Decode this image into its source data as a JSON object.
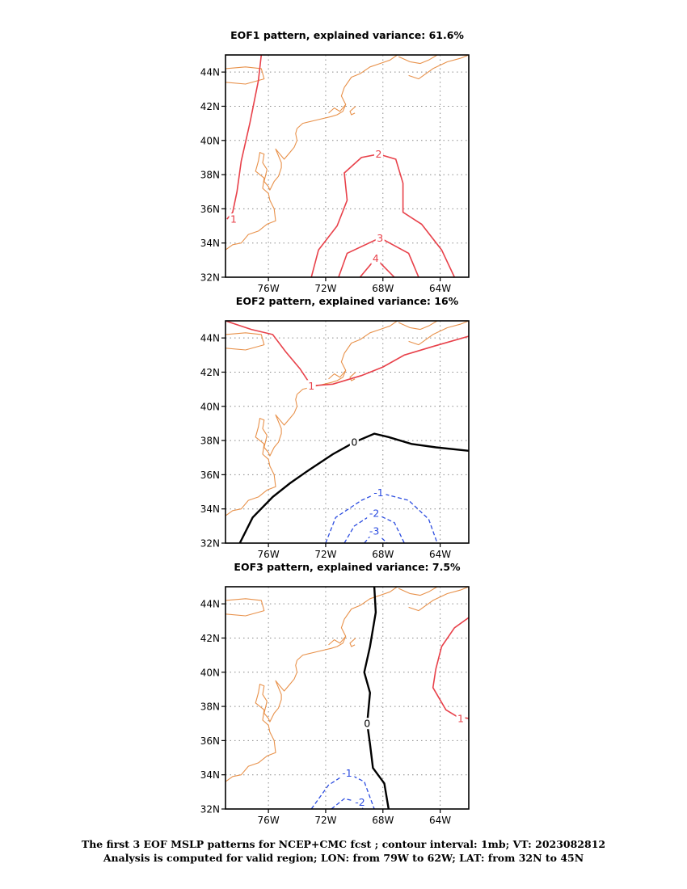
{
  "chart_data": [
    {
      "type": "contour",
      "title": "EOF1 pattern, explained variance: 61.6%",
      "x_ticks": [
        "76W",
        "72W",
        "68W",
        "64W"
      ],
      "y_ticks": [
        "32N",
        "34N",
        "36N",
        "38N",
        "40N",
        "42N",
        "44N"
      ],
      "lon_range": [
        -79,
        -62
      ],
      "lat_range": [
        32,
        45
      ],
      "grid": true,
      "contours": [
        {
          "value": 1,
          "label": "1",
          "color": "#e8414a",
          "line": [
            [
              -76.5,
              45
            ],
            [
              -76.7,
              43.5
            ],
            [
              -77.3,
              41
            ],
            [
              -77.9,
              38.8
            ],
            [
              -78.2,
              37
            ],
            [
              -78.5,
              35.8
            ],
            [
              -78.9,
              35.4
            ]
          ]
        },
        {
          "value": 2,
          "label": "2",
          "color": "#e8414a",
          "line": [
            [
              -73,
              32
            ],
            [
              -72.5,
              33.6
            ],
            [
              -71.2,
              35
            ],
            [
              -70.5,
              36.5
            ],
            [
              -70.7,
              38.1
            ],
            [
              -69.5,
              39
            ],
            [
              -68.3,
              39.2
            ],
            [
              -67.1,
              38.9
            ],
            [
              -66.6,
              37.5
            ],
            [
              -66.6,
              35.8
            ],
            [
              -65.3,
              35.1
            ],
            [
              -63.9,
              33.6
            ],
            [
              -63,
              32
            ]
          ]
        },
        {
          "value": 3,
          "label": "3",
          "color": "#e8414a",
          "line": [
            [
              -71.1,
              32
            ],
            [
              -70.5,
              33.4
            ],
            [
              -68.2,
              34.3
            ],
            [
              -66.2,
              33.4
            ],
            [
              -65.5,
              32
            ]
          ]
        },
        {
          "value": 4,
          "label": "4",
          "color": "#e8414a",
          "line": [
            [
              -69.6,
              32
            ],
            [
              -68.5,
              33.1
            ],
            [
              -67.2,
              32
            ]
          ]
        }
      ],
      "colors": {
        "positive": "#e8414a",
        "zero": "#000000",
        "negative": "#2b4ce0",
        "coastline": "#e8914a"
      }
    },
    {
      "type": "contour",
      "title": "EOF2 pattern, explained variance: 16%",
      "x_ticks": [
        "76W",
        "72W",
        "68W",
        "64W"
      ],
      "y_ticks": [
        "32N",
        "34N",
        "36N",
        "38N",
        "40N",
        "42N",
        "44N"
      ],
      "lon_range": [
        -79,
        -62
      ],
      "lat_range": [
        32,
        45
      ],
      "grid": true,
      "contours": [
        {
          "value": 1,
          "label": "1",
          "color": "#e8414a",
          "line": [
            [
              -79,
              45
            ],
            [
              -77.2,
              44.5
            ],
            [
              -75.7,
              44.2
            ],
            [
              -74.8,
              43.2
            ],
            [
              -73.8,
              42.2
            ],
            [
              -73,
              41.2
            ],
            [
              -71.5,
              41.3
            ],
            [
              -69.5,
              41.8
            ],
            [
              -68,
              42.3
            ],
            [
              -66.5,
              43
            ],
            [
              -64.5,
              43.5
            ],
            [
              -62,
              44.1
            ]
          ]
        },
        {
          "value": 0,
          "label": "0",
          "color": "#000000",
          "line": [
            [
              -78,
              32
            ],
            [
              -77.1,
              33.5
            ],
            [
              -75.7,
              34.7
            ],
            [
              -74.5,
              35.5
            ],
            [
              -73.3,
              36.2
            ],
            [
              -71.5,
              37.2
            ],
            [
              -70,
              37.9
            ],
            [
              -68.6,
              38.4
            ],
            [
              -67.6,
              38.2
            ],
            [
              -66,
              37.8
            ],
            [
              -64.3,
              37.6
            ],
            [
              -62,
              37.4
            ]
          ]
        },
        {
          "value": -1,
          "label": "-1",
          "color": "#2b4ce0",
          "line": [
            [
              -72,
              32
            ],
            [
              -71.3,
              33.5
            ],
            [
              -69.5,
              34.5
            ],
            [
              -68.3,
              34.95
            ],
            [
              -66.2,
              34.5
            ],
            [
              -64.8,
              33.4
            ],
            [
              -64.2,
              32
            ]
          ]
        },
        {
          "value": -2,
          "label": "-2",
          "color": "#2b4ce0",
          "line": [
            [
              -70.7,
              32
            ],
            [
              -70,
              33
            ],
            [
              -68.6,
              33.75
            ],
            [
              -67.2,
              33.2
            ],
            [
              -66.5,
              32
            ]
          ]
        },
        {
          "value": -3,
          "label": "-3",
          "color": "#2b4ce0",
          "line": [
            [
              -69.3,
              32
            ],
            [
              -68.6,
              32.7
            ],
            [
              -67.7,
              32
            ]
          ]
        }
      ],
      "colors": {
        "positive": "#e8414a",
        "zero": "#000000",
        "negative": "#2b4ce0",
        "coastline": "#e8914a"
      }
    },
    {
      "type": "contour",
      "title": "EOF3 pattern, explained variance: 7.5%",
      "x_ticks": [
        "76W",
        "72W",
        "68W",
        "64W"
      ],
      "y_ticks": [
        "32N",
        "34N",
        "36N",
        "38N",
        "40N",
        "42N",
        "44N"
      ],
      "lon_range": [
        -79,
        -62
      ],
      "lat_range": [
        32,
        45
      ],
      "grid": true,
      "contours": [
        {
          "value": 1,
          "label": "1",
          "color": "#e8414a",
          "line": [
            [
              -62,
              43.2
            ],
            [
              -63,
              42.6
            ],
            [
              -63.9,
              41.5
            ],
            [
              -64.3,
              40.2
            ],
            [
              -64.5,
              39.1
            ],
            [
              -63.6,
              37.8
            ],
            [
              -62.8,
              37.4
            ],
            [
              -62,
              37.3
            ]
          ]
        },
        {
          "value": 0,
          "label": "0",
          "color": "#000000",
          "line": [
            [
              -68.6,
              45
            ],
            [
              -68.5,
              43.5
            ],
            [
              -68.9,
              41.5
            ],
            [
              -69.3,
              40
            ],
            [
              -68.9,
              38.8
            ],
            [
              -69.1,
              37
            ],
            [
              -68.9,
              35.8
            ],
            [
              -68.7,
              34.4
            ],
            [
              -67.9,
              33.5
            ],
            [
              -67.6,
              32
            ]
          ]
        },
        {
          "value": -1,
          "label": "-1",
          "color": "#2b4ce0",
          "line": [
            [
              -73,
              32
            ],
            [
              -71.8,
              33.4
            ],
            [
              -70.5,
              34.1
            ],
            [
              -69.3,
              33.6
            ],
            [
              -68.6,
              32
            ]
          ]
        },
        {
          "value": -2,
          "label": "-2",
          "color": "#2b4ce0",
          "line": [
            [
              -71.6,
              32
            ],
            [
              -70.7,
              32.6
            ],
            [
              -69.6,
              32.4
            ],
            [
              -69.4,
              32
            ]
          ]
        }
      ],
      "colors": {
        "positive": "#e8414a",
        "zero": "#000000",
        "negative": "#2b4ce0",
        "coastline": "#e8914a"
      }
    }
  ],
  "caption": {
    "line1": "The first 3 EOF MSLP patterns for NCEP+CMC fcst ; contour interval: 1mb; VT: 2023082812",
    "line2": "Analysis is computed for valid region; LON: from 79W to 62W; LAT: from 32N to 45N"
  }
}
